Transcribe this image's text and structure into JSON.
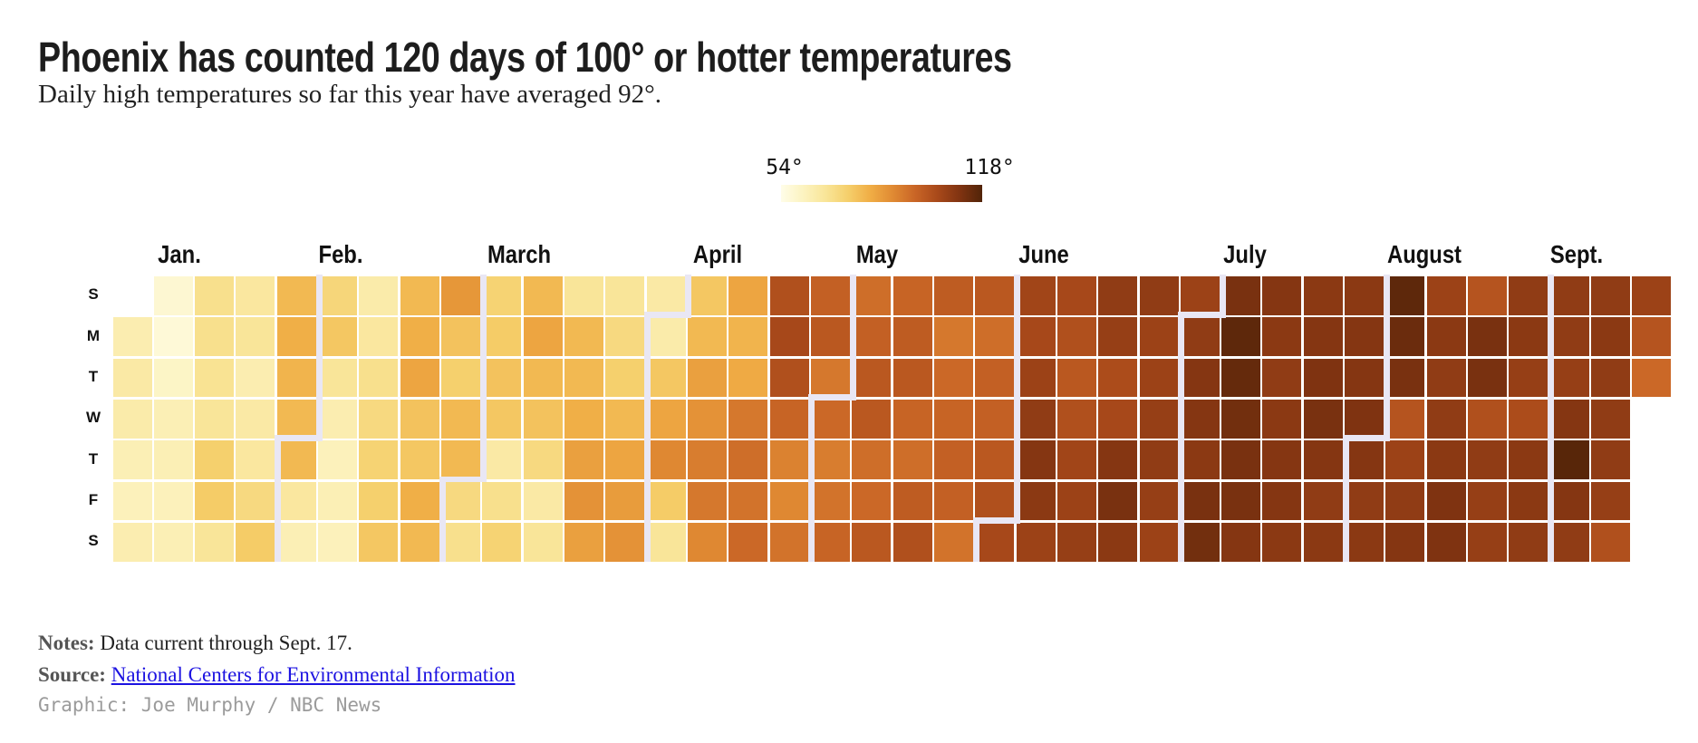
{
  "title": "Phoenix has counted 120 days of 100° or hotter temperatures",
  "subtitle": "Daily high temperatures so far this year have averaged 92°.",
  "legend": {
    "min_label": "54°",
    "max_label": "118°"
  },
  "notes": {
    "label": "Notes:",
    "text": "Data current through Sept. 17."
  },
  "source": {
    "label": "Source:",
    "link_text": "National Centers for Environmental Information"
  },
  "credit": "Graphic: Joe Murphy / NBC News",
  "colors": {
    "scale_stops": [
      "#fffde8",
      "#fcf3c0",
      "#f9e598",
      "#f5cf6b",
      "#f0ad45",
      "#e08a33",
      "#c96526",
      "#a8491a",
      "#803311",
      "#512408"
    ],
    "separator": "#e9e7f4",
    "cell_gap_background": "#ffffff",
    "title_text": "#1d1d1d",
    "body_text": "#222222",
    "footer_label": "#555555",
    "link": "#1c12e1",
    "credit_text": "#9b9b9b"
  },
  "chart_data": {
    "type": "heatmap",
    "subtype": "calendar-week-columns",
    "title": "Phoenix has counted 120 days of 100° or hotter temperatures",
    "unit": "°F",
    "domain": [
      54,
      118
    ],
    "legend_ticks": [
      "54°",
      "118°"
    ],
    "weekday_labels": [
      "S",
      "M",
      "T",
      "W",
      "T",
      "F",
      "S"
    ],
    "month_labels": [
      "Jan.",
      "Feb.",
      "March",
      "April",
      "May",
      "June",
      "July",
      "August",
      "Sept."
    ],
    "month_lengths": [
      31,
      29,
      31,
      30,
      31,
      30,
      31,
      31,
      17
    ],
    "start_weekday": 1,
    "values": [
      64,
      66,
      65,
      63,
      62,
      64,
      58,
      57,
      60,
      63,
      63,
      62,
      63,
      70,
      70,
      69,
      68,
      75,
      76,
      68,
      67,
      68,
      64,
      66,
      67,
      72,
      76,
      80,
      82,
      81,
      80,
      80,
      67,
      63,
      73,
      77,
      68,
      64,
      62,
      63,
      62,
      65,
      67,
      70,
      72,
      74,
      75,
      77,
      80,
      82,
      84,
      78,
      77,
      82,
      80,
      87,
      78,
      75,
      80,
      80,
      72,
      70,
      74,
      76,
      78,
      77,
      66,
      70,
      74,
      80,
      84,
      80,
      78,
      72,
      66,
      68,
      68,
      80,
      80,
      82,
      85,
      88,
      85,
      68,
      72,
      75,
      80,
      84,
      86,
      88,
      66,
      65,
      77,
      84,
      90,
      76,
      68,
      77,
      80,
      85,
      88,
      92,
      93,
      90,
      84,
      81,
      83,
      93,
      95,
      94,
      96,
      102,
      104,
      102,
      97,
      91,
      90,
      94,
      98,
      100,
      93,
      96,
      92,
      94,
      97,
      95,
      98,
      100,
      100,
      95,
      96,
      100,
      97,
      99,
      100,
      97,
      95,
      99,
      102,
      99,
      93,
      96,
      97,
      98,
      98,
      94,
      100,
      95,
      98,
      98,
      100,
      102,
      104,
      105,
      104,
      106,
      108,
      110,
      109,
      106,
      104,
      102,
      100,
      102,
      105,
      106,
      107,
      108,
      107,
      103,
      104,
      110,
      112,
      109,
      108,
      106,
      106,
      107,
      108,
      107,
      106,
      106,
      108,
      110,
      110,
      109,
      112,
      113,
      112,
      116,
      115,
      113,
      112,
      112,
      110,
      110,
      109,
      108,
      109,
      110,
      110,
      109,
      109,
      110,
      111,
      112,
      110,
      108,
      109,
      109,
      110,
      110,
      111,
      110,
      108,
      109,
      116,
      114,
      112,
      101,
      106,
      108,
      110,
      106,
      109,
      108,
      108,
      109,
      111,
      111,
      101,
      112,
      112,
      102,
      108,
      107,
      107,
      108,
      109,
      107,
      103,
      109,
      109,
      108,
      108,
      108,
      107,
      110,
      117,
      110,
      108,
      108,
      109,
      108,
      108,
      108,
      107,
      102,
      106,
      101,
      96
    ]
  }
}
